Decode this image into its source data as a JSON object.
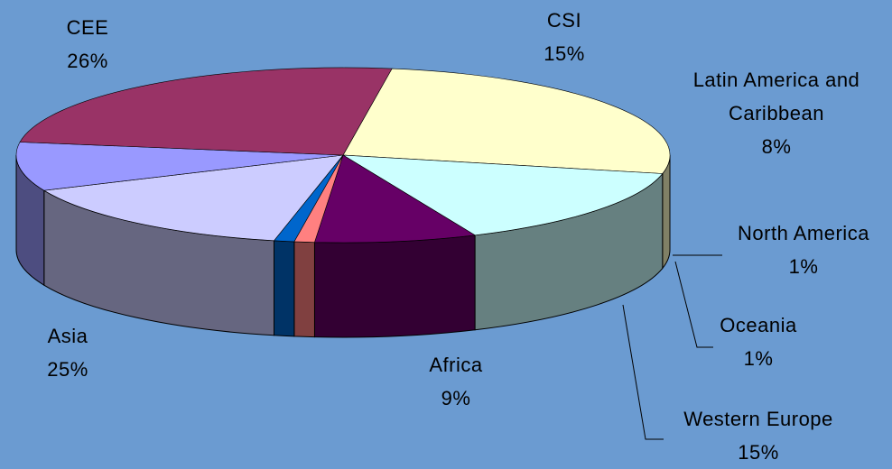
{
  "chart_data": {
    "type": "pie",
    "categories": [
      "CEE",
      "CSI",
      "Latin America and Caribbean",
      "North America",
      "Oceania",
      "Western Europe",
      "Africa",
      "Asia"
    ],
    "values": [
      26,
      15,
      8,
      1,
      1,
      15,
      9,
      25
    ],
    "value_labels": [
      "26%",
      "15%",
      "8%",
      "1%",
      "1%",
      "15%",
      "9%",
      "25%"
    ],
    "colors": [
      "#ffffcc",
      "#ccffff",
      "#660066",
      "#ff8080",
      "#0066cc",
      "#ccccff",
      "#9999ff",
      "#993366"
    ]
  }
}
